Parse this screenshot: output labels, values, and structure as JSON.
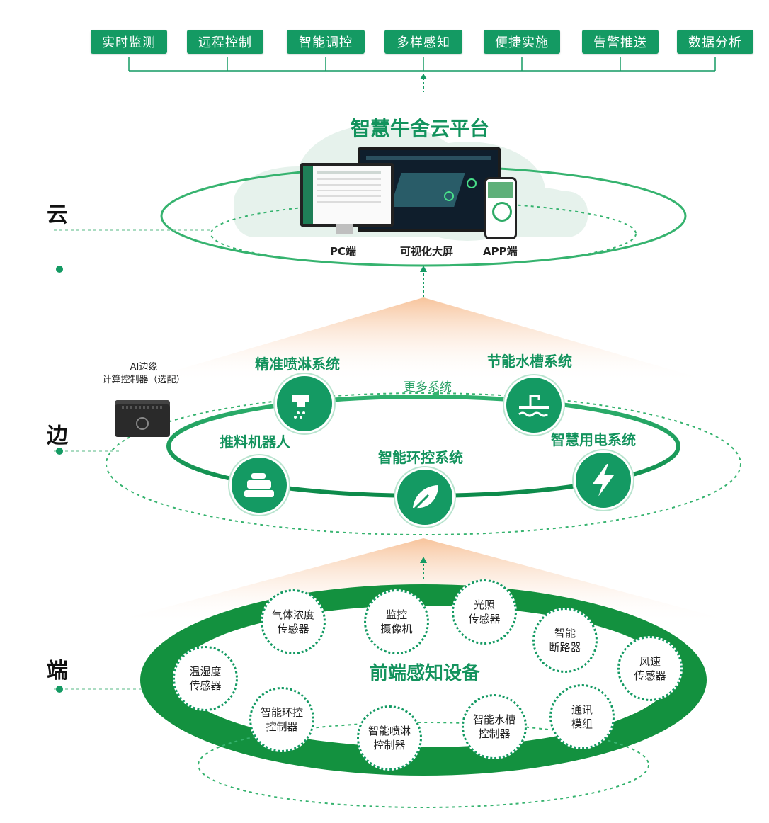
{
  "features": [
    "实时监测",
    "远程控制",
    "智能调控",
    "多样感知",
    "便捷实施",
    "告警推送",
    "数据分析"
  ],
  "tiers": {
    "cloud": "云",
    "edge": "边",
    "end": "端"
  },
  "cloud": {
    "title": "智慧牛舍云平台",
    "screens": [
      "PC端",
      "可视化大屏",
      "APP端"
    ]
  },
  "edge": {
    "controller_line1": "AI边缘",
    "controller_line2": "计算控制器（选配）",
    "more": "更多系统",
    "systems": [
      {
        "label": "精准喷淋系统",
        "icon": "faucet-spray-icon"
      },
      {
        "label": "节能水槽系统",
        "icon": "water-trough-icon"
      },
      {
        "label": "推料机器人",
        "icon": "feed-robot-icon"
      },
      {
        "label": "智能环控系统",
        "icon": "leaf-icon"
      },
      {
        "label": "智慧用电系统",
        "icon": "lightning-icon"
      }
    ]
  },
  "end": {
    "title": "前端感知设备",
    "devices": [
      "气体浓度\n传感器",
      "监控\n摄像机",
      "光照\n传感器",
      "智能\n断路器",
      "风速\n传感器",
      "温湿度\n传感器",
      "智能环控\n控制器",
      "智能喷淋\n控制器",
      "智能水槽\n控制器",
      "通讯\n模组"
    ]
  },
  "colors": {
    "accent": "#149a63",
    "light_accent": "#b9e4cf",
    "glow": "#f7c9a0"
  }
}
